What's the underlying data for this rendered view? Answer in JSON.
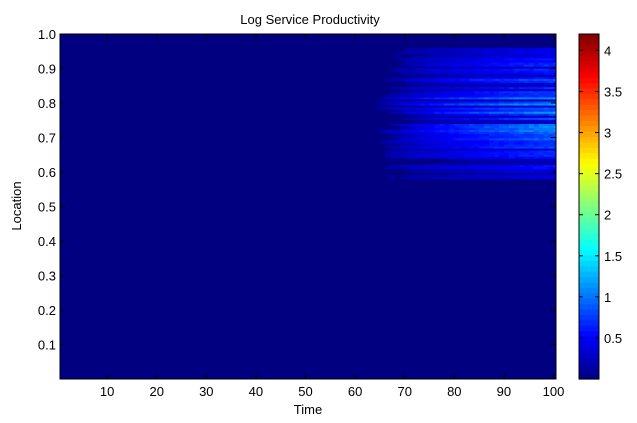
{
  "chart_data": {
    "type": "heatmap",
    "title": "Log Service Productivity",
    "xlabel": "Time",
    "ylabel": "Location",
    "xlim": [
      1,
      100
    ],
    "ylim": [
      0,
      1
    ],
    "x_ticks": [
      10,
      20,
      30,
      40,
      50,
      60,
      70,
      80,
      90,
      100
    ],
    "x_tick_labels": [
      "10",
      "20",
      "30",
      "40",
      "50",
      "60",
      "70",
      "80",
      "90",
      "100"
    ],
    "y_ticks": [
      0.1,
      0.2,
      0.3,
      0.4,
      0.5,
      0.6,
      0.7,
      0.8,
      0.9,
      1.0
    ],
    "y_tick_labels": [
      "0.1",
      "0.2",
      "0.3",
      "0.4",
      "0.5",
      "0.6",
      "0.7",
      "0.8",
      "0.9",
      "1.0"
    ],
    "colorbar": {
      "colormap": "jet",
      "range": [
        0,
        4.2
      ],
      "ticks": [
        0.5,
        1,
        1.5,
        2,
        2.5,
        3,
        3.5,
        4
      ],
      "tick_labels": [
        "0.5",
        "1",
        "1.5",
        "2",
        "2.5",
        "3",
        "3.5",
        "4"
      ]
    },
    "background_value": 0.0,
    "active_region": {
      "time_range": [
        63,
        100
      ],
      "location_range": [
        0.58,
        0.96
      ],
      "peak_value": 1.3
    }
  }
}
